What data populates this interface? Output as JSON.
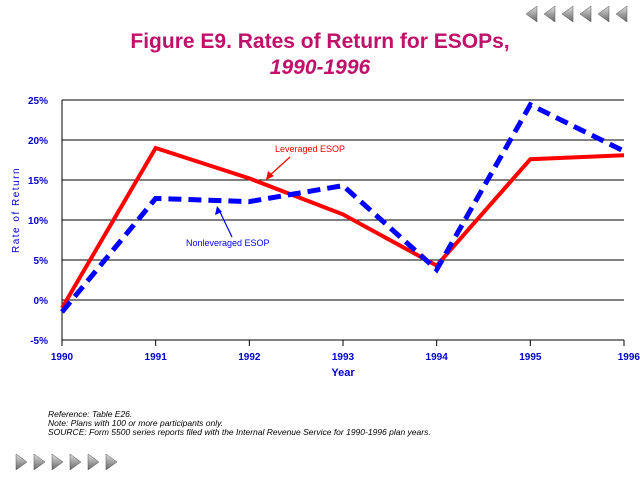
{
  "title_line1": "Figure E9.  Rates of Return for ESOPs,",
  "title_line2": "1990-1996",
  "nav": {
    "prev_icon": "left-arrow-icon",
    "next_icon": "right-arrow-icon"
  },
  "footnotes": {
    "reference": "Reference: Table E26.",
    "note": "Note: Plans with 100 or more participants only.",
    "source": "SOURCE: Form 5500 series reports filed with the Internal Revenue Service for 1990-1996 plan years."
  },
  "colors": {
    "leveraged": "#ff0000",
    "nonleveraged": "#0000ff",
    "axis_text": "#0000cc",
    "title": "#c0106a"
  },
  "chart_data": {
    "type": "line",
    "title": "Figure E9. Rates of Return for ESOPs, 1990-1996",
    "xlabel": "Year",
    "ylabel": "Rate of Return",
    "x": [
      "1990",
      "1991",
      "1992",
      "1993",
      "1994",
      "1995",
      "1996"
    ],
    "yticks": [
      "25%",
      "20%",
      "15%",
      "10%",
      "5%",
      "0%",
      "-5%"
    ],
    "ytick_values": [
      25,
      20,
      15,
      10,
      5,
      0,
      -5
    ],
    "ylim": [
      -5,
      25
    ],
    "grid": true,
    "series": [
      {
        "name": "Leveraged ESOP",
        "style": "solid",
        "values": [
          -1.0,
          19.0,
          15.2,
          10.7,
          4.3,
          17.6,
          18.1
        ]
      },
      {
        "name": "Nonleveraged ESOP",
        "style": "dashed",
        "values": [
          -1.5,
          12.7,
          12.3,
          14.3,
          3.8,
          24.4,
          18.6
        ]
      }
    ],
    "annotations": [
      "Leveraged ESOP",
      "Nonleveraged ESOP"
    ]
  }
}
